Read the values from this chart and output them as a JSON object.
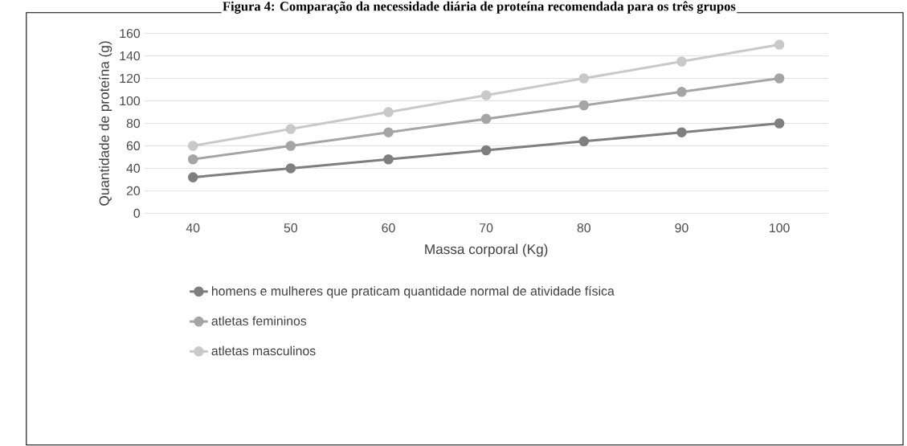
{
  "chart_data": {
    "type": "line",
    "title": "Figura 4: Comparação da necessidade diária de proteína recomendada para os três grupos",
    "xlabel": "Massa corporal (Kg)",
    "ylabel": "Quantidade de proteína (g)",
    "categories": [
      "40",
      "50",
      "60",
      "70",
      "80",
      "90",
      "100"
    ],
    "series": [
      {
        "name": "homens e mulheres que praticam quantidade normal de atividade física",
        "color": "#7f7f7f",
        "values": [
          32,
          40,
          48,
          56,
          64,
          72,
          80
        ]
      },
      {
        "name": "atletas femininos",
        "color": "#a5a5a5",
        "values": [
          48,
          60,
          72,
          84,
          96,
          108,
          120
        ]
      },
      {
        "name": "atletas masculinos",
        "color": "#c9c9c9",
        "values": [
          60,
          75,
          90,
          105,
          120,
          135,
          150
        ]
      }
    ],
    "ylim": [
      0,
      160
    ],
    "yticks": [
      0,
      20,
      40,
      60,
      80,
      100,
      120,
      140,
      160
    ],
    "grid": "y",
    "legend": "bottom",
    "marker": "circle",
    "line_style": "solid"
  }
}
